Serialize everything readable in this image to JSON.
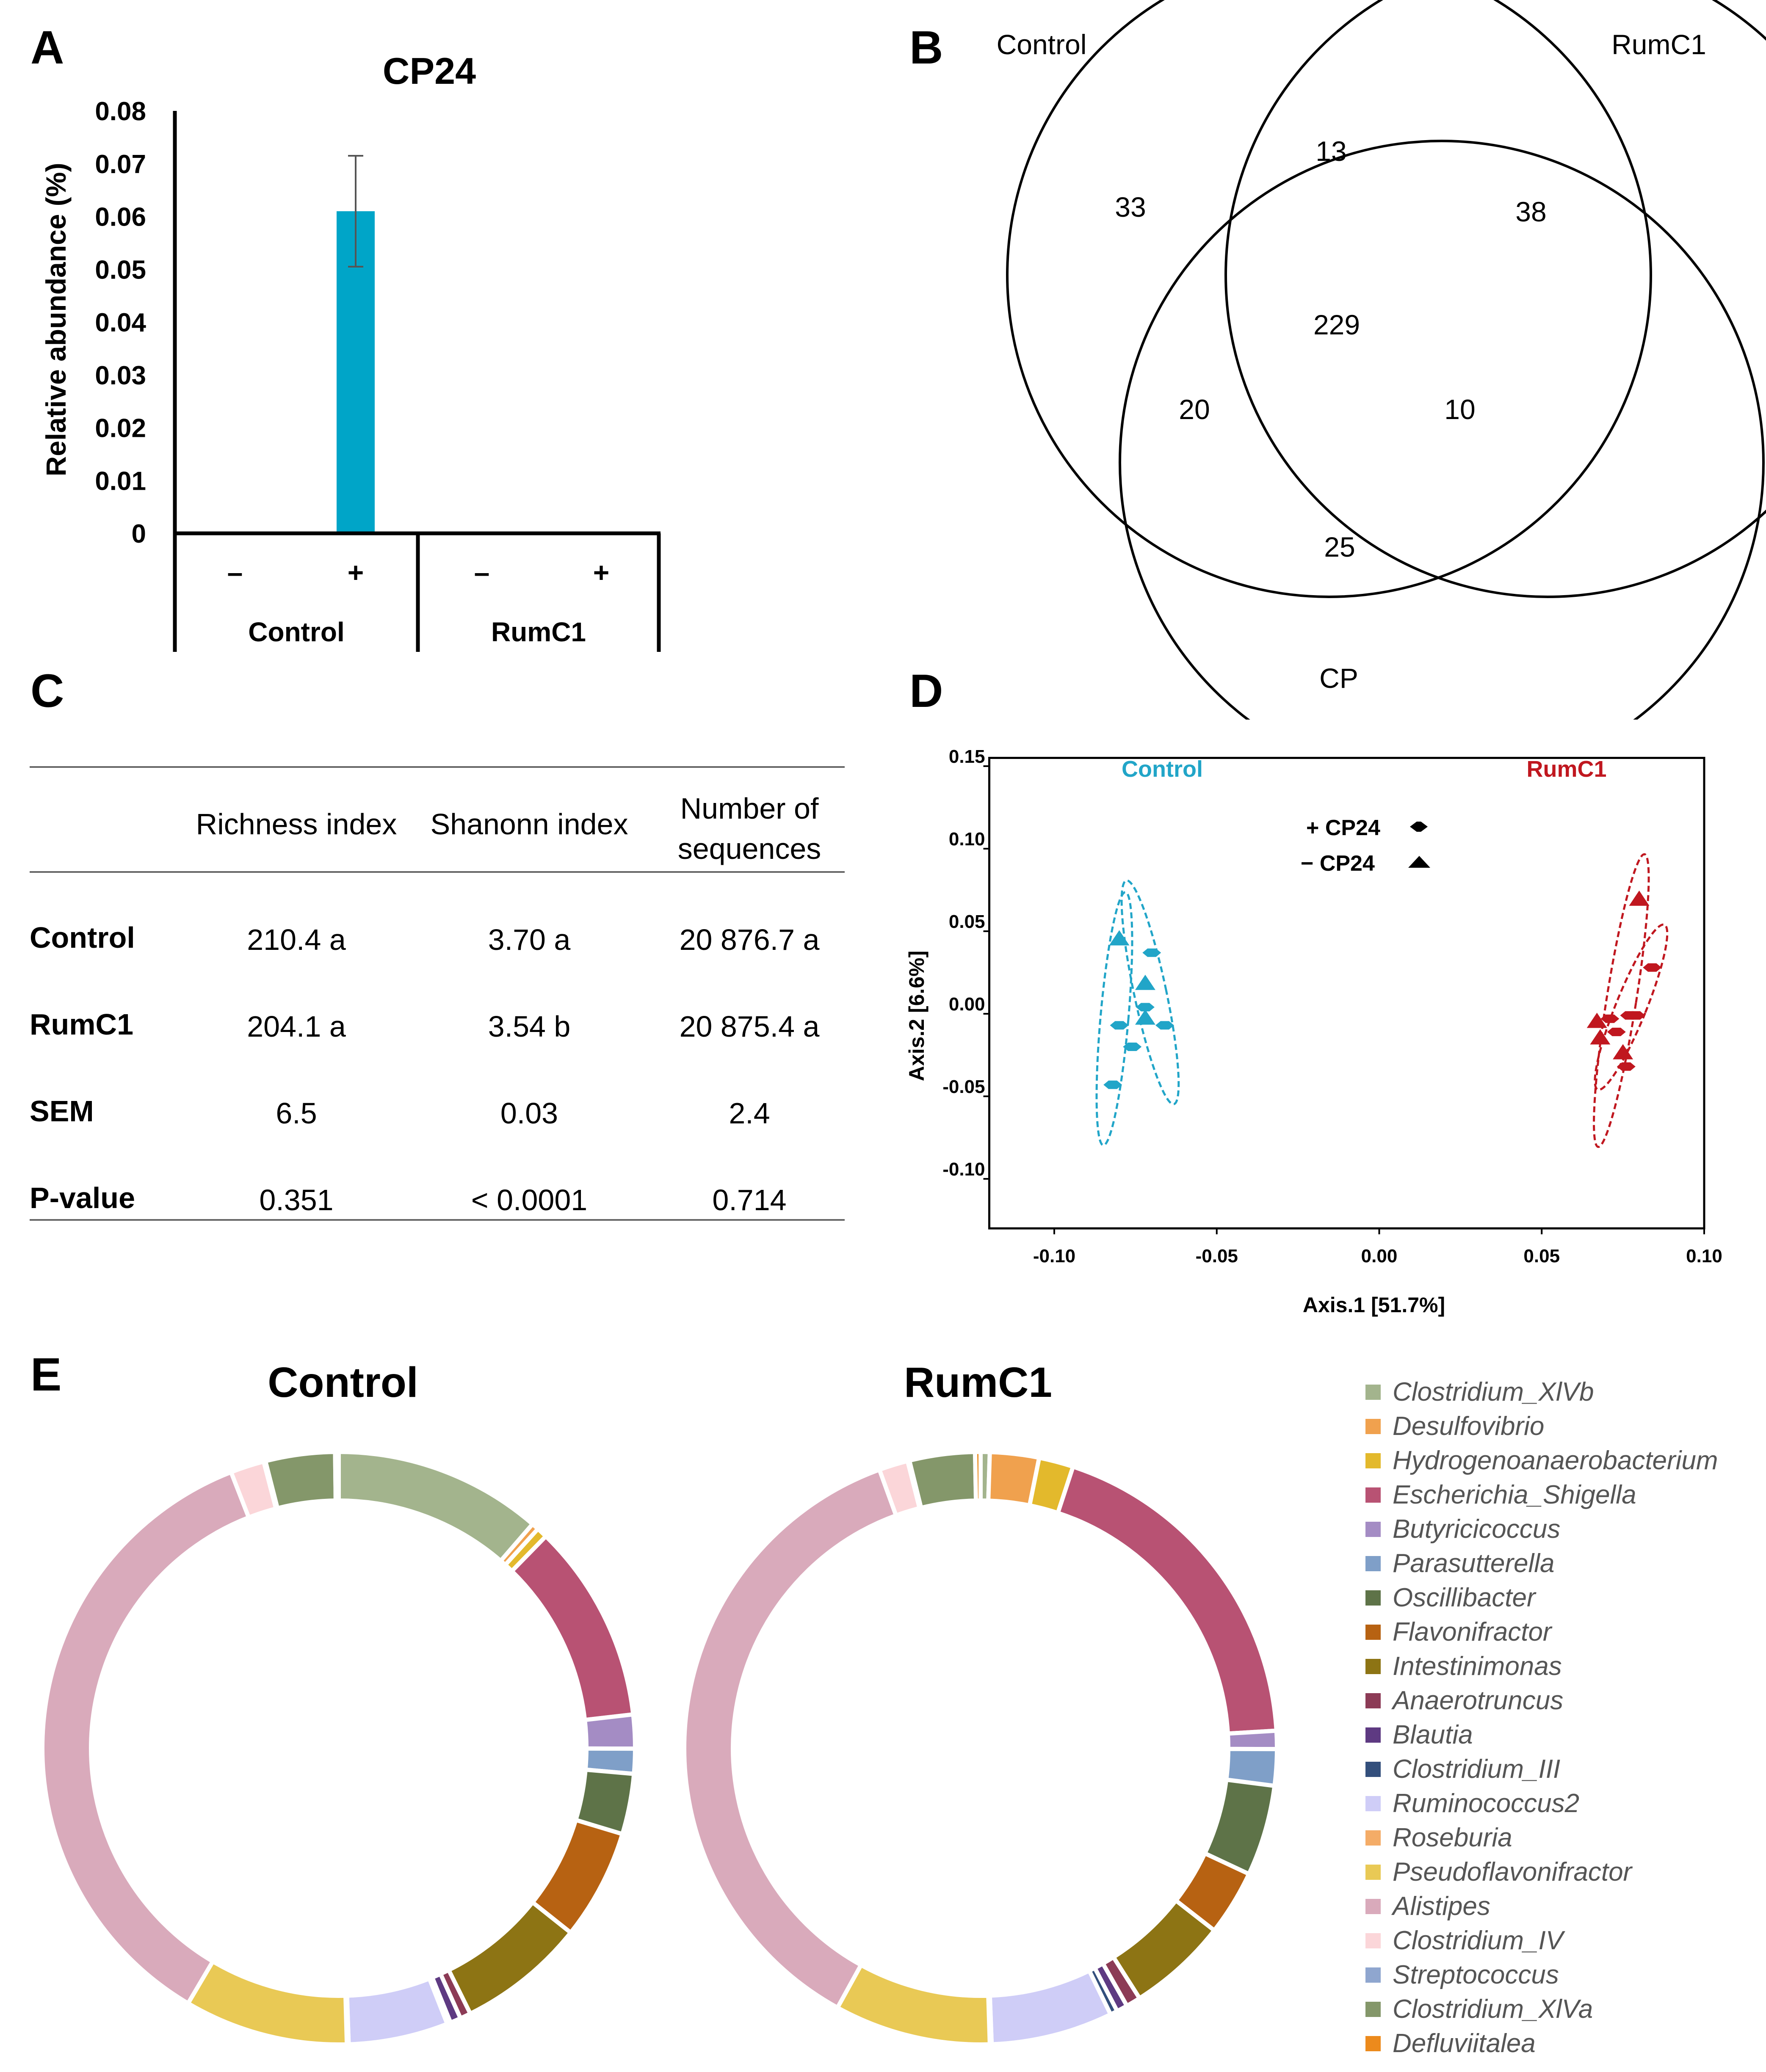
{
  "panel_labels": {
    "a": "A",
    "b": "B",
    "c": "C",
    "d": "D",
    "e": "E"
  },
  "chart_data": [
    {
      "panel": "A",
      "type": "bar",
      "title": "CP24",
      "ylabel": "Relative abundance (%)",
      "ylim": [
        0,
        0.08
      ],
      "yticks": [
        "0",
        "0.01",
        "0.02",
        "0.03",
        "0.04",
        "0.05",
        "0.06",
        "0.07",
        "0.08"
      ],
      "groups": [
        "Control",
        "RumC1"
      ],
      "subcategories": [
        "–",
        "+",
        "–",
        "+"
      ],
      "values": [
        0,
        0.061,
        0,
        0
      ],
      "errors": [
        0,
        0.0105,
        0,
        0
      ],
      "color": "#00a5c8"
    },
    {
      "panel": "B",
      "type": "venn",
      "sets": [
        "Control",
        "RumC1",
        "CP"
      ],
      "regions": {
        "control_only": "33",
        "rumc1_only": "38",
        "cp_only": "25",
        "control_rumc1": "13",
        "control_cp": "20",
        "rumc1_cp": "10",
        "all": "229"
      }
    },
    {
      "panel": "C",
      "type": "table",
      "columns": [
        "Richness index",
        "Shanonn index",
        "Number of",
        "sequences"
      ],
      "rows": [
        {
          "label": "Control",
          "richness": "210.4 a",
          "shannon": "3.70 a",
          "sequences": "20 876.7 a"
        },
        {
          "label": "RumC1",
          "richness": "204.1 a",
          "shannon": "3.54 b",
          "sequences": "20 875.4 a"
        },
        {
          "label": "SEM",
          "richness": "6.5",
          "shannon": "0.03",
          "sequences": "2.4"
        },
        {
          "label": "P-value",
          "richness": "0.351",
          "shannon": "< 0.0001",
          "sequences": "0.714"
        }
      ]
    },
    {
      "panel": "D",
      "type": "scatter",
      "xlabel": "Axis.1   [51.7%]",
      "ylabel": "Axis.2   [6.6%]",
      "xlim": [
        -0.12,
        0.1
      ],
      "ylim": [
        -0.13,
        0.155
      ],
      "xticks": [
        -0.1,
        -0.05,
        0.0,
        0.05,
        0.1
      ],
      "xtick_labels": [
        "-0.10",
        "-0.05",
        "0.00",
        "0.05",
        "0.10"
      ],
      "yticks": [
        -0.1,
        -0.05,
        0.0,
        0.05,
        0.1,
        0.15
      ],
      "ytick_labels": [
        "-0.10",
        "-0.05",
        "0.00",
        "0.05",
        "0.10",
        "0.15"
      ],
      "group_labels": [
        "Control",
        "RumC1"
      ],
      "legend": [
        "+ CP24",
        "− CP24"
      ],
      "series": [
        {
          "name": "Control",
          "color": "#21a5c8",
          "plus_cp24": [
            [
              -0.07,
              0.037
            ],
            [
              -0.072,
              0.004
            ],
            [
              -0.066,
              -0.007
            ],
            [
              -0.08,
              -0.007
            ],
            [
              -0.076,
              -0.02
            ],
            [
              -0.082,
              -0.043
            ]
          ],
          "minus_cp24": [
            [
              -0.08,
              0.045
            ],
            [
              -0.072,
              0.018
            ],
            [
              -0.072,
              -0.003
            ]
          ]
        },
        {
          "name": "RumC1",
          "color": "#c0171f",
          "plus_cp24": [
            [
              0.084,
              0.028
            ],
            [
              0.079,
              -0.001
            ],
            [
              0.077,
              -0.001
            ],
            [
              0.071,
              -0.003
            ],
            [
              0.073,
              -0.011
            ],
            [
              0.076,
              -0.032
            ]
          ],
          "minus_cp24": [
            [
              0.08,
              0.069
            ],
            [
              0.067,
              -0.005
            ],
            [
              0.068,
              -0.015
            ],
            [
              0.075,
              -0.024
            ]
          ]
        }
      ]
    },
    {
      "panel": "E",
      "type": "pie",
      "charts": [
        {
          "title": "Control",
          "values": [
            0.117,
            0.004,
            0.006,
            0.112,
            0.019,
            0.014,
            0.034,
            0.062,
            0.072,
            0.006,
            0.006,
            0.002,
            0.056,
            0.001,
            0.092,
            0.367,
            0.019,
            0.001,
            0.039,
            0.002
          ]
        },
        {
          "title": "RumC1",
          "values": [
            0.005,
            0.027,
            0.019,
            0.192,
            0.01,
            0.02,
            0.05,
            0.036,
            0.055,
            0.008,
            0.006,
            0.004,
            0.067,
            0.001,
            0.086,
            0.368,
            0.016,
            0.001,
            0.036,
            0.003
          ]
        }
      ],
      "legend": [
        {
          "label": "Clostridium_XlVb",
          "color": "#a3b48d"
        },
        {
          "label": "Desulfovibrio",
          "color": "#f0a14e"
        },
        {
          "label": "Hydrogenoanaerobacterium",
          "color": "#e3b92c"
        },
        {
          "label": "Escherichia_Shigella",
          "color": "#b85273"
        },
        {
          "label": "Butyricicoccus",
          "color": "#a48cc4"
        },
        {
          "label": "Parasutterella",
          "color": "#7f9fc8"
        },
        {
          "label": "Oscillibacter",
          "color": "#5e7348"
        },
        {
          "label": "Flavonifractor",
          "color": "#b76212"
        },
        {
          "label": "Intestinimonas",
          "color": "#8d7414"
        },
        {
          "label": "Anaerotruncus",
          "color": "#8c3b56"
        },
        {
          "label": "Blautia",
          "color": "#5e3a82"
        },
        {
          "label": "Clostridium_III",
          "color": "#334f7c"
        },
        {
          "label": "Ruminococcus2",
          "color": "#cfcdf7"
        },
        {
          "label": "Roseburia",
          "color": "#f4ac67"
        },
        {
          "label": "Pseudoflavonifractor",
          "color": "#e9c955"
        },
        {
          "label": "Alistipes",
          "color": "#d9aabb"
        },
        {
          "label": "Clostridium_IV",
          "color": "#fbd6d9"
        },
        {
          "label": "Streptococcus",
          "color": "#8fa6cf"
        },
        {
          "label": "Clostridium_XlVa",
          "color": "#84976a"
        },
        {
          "label": "Defluviitalea",
          "color": "#ec8a1c"
        }
      ]
    }
  ]
}
